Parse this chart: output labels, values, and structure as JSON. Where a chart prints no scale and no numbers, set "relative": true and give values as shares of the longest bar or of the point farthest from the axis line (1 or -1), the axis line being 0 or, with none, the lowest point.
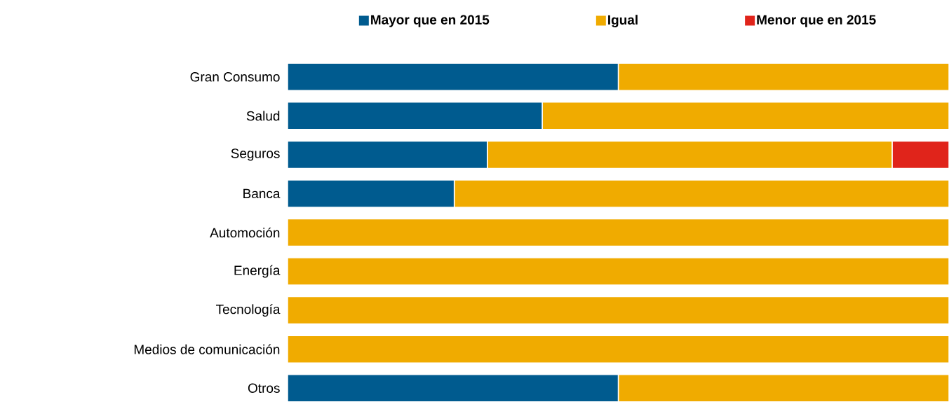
{
  "chart_data": {
    "type": "bar",
    "orientation": "horizontal",
    "stacked": true,
    "relative": true,
    "legend": "top",
    "categories": [
      "Gran Consumo",
      "Salud",
      "Seguros",
      "Banca",
      "Automoción",
      "Energía",
      "Tecnología",
      "Medios de comunicación",
      "Otros"
    ],
    "series": [
      {
        "name": "Mayor que en 2015",
        "color": "#005b8f",
        "values": [
          0.5,
          0.385,
          0.302,
          0.252,
          0,
          0,
          0,
          0,
          0.5
        ]
      },
      {
        "name": "Igual",
        "color": "#f0ab00",
        "values": [
          0.5,
          0.615,
          0.612,
          0.748,
          1,
          1,
          1,
          1,
          0.5
        ]
      },
      {
        "name": "Menor que en 2015",
        "color": "#e0241b",
        "values": [
          0,
          0,
          0.086,
          0,
          0,
          0,
          0,
          0,
          0
        ]
      }
    ]
  }
}
